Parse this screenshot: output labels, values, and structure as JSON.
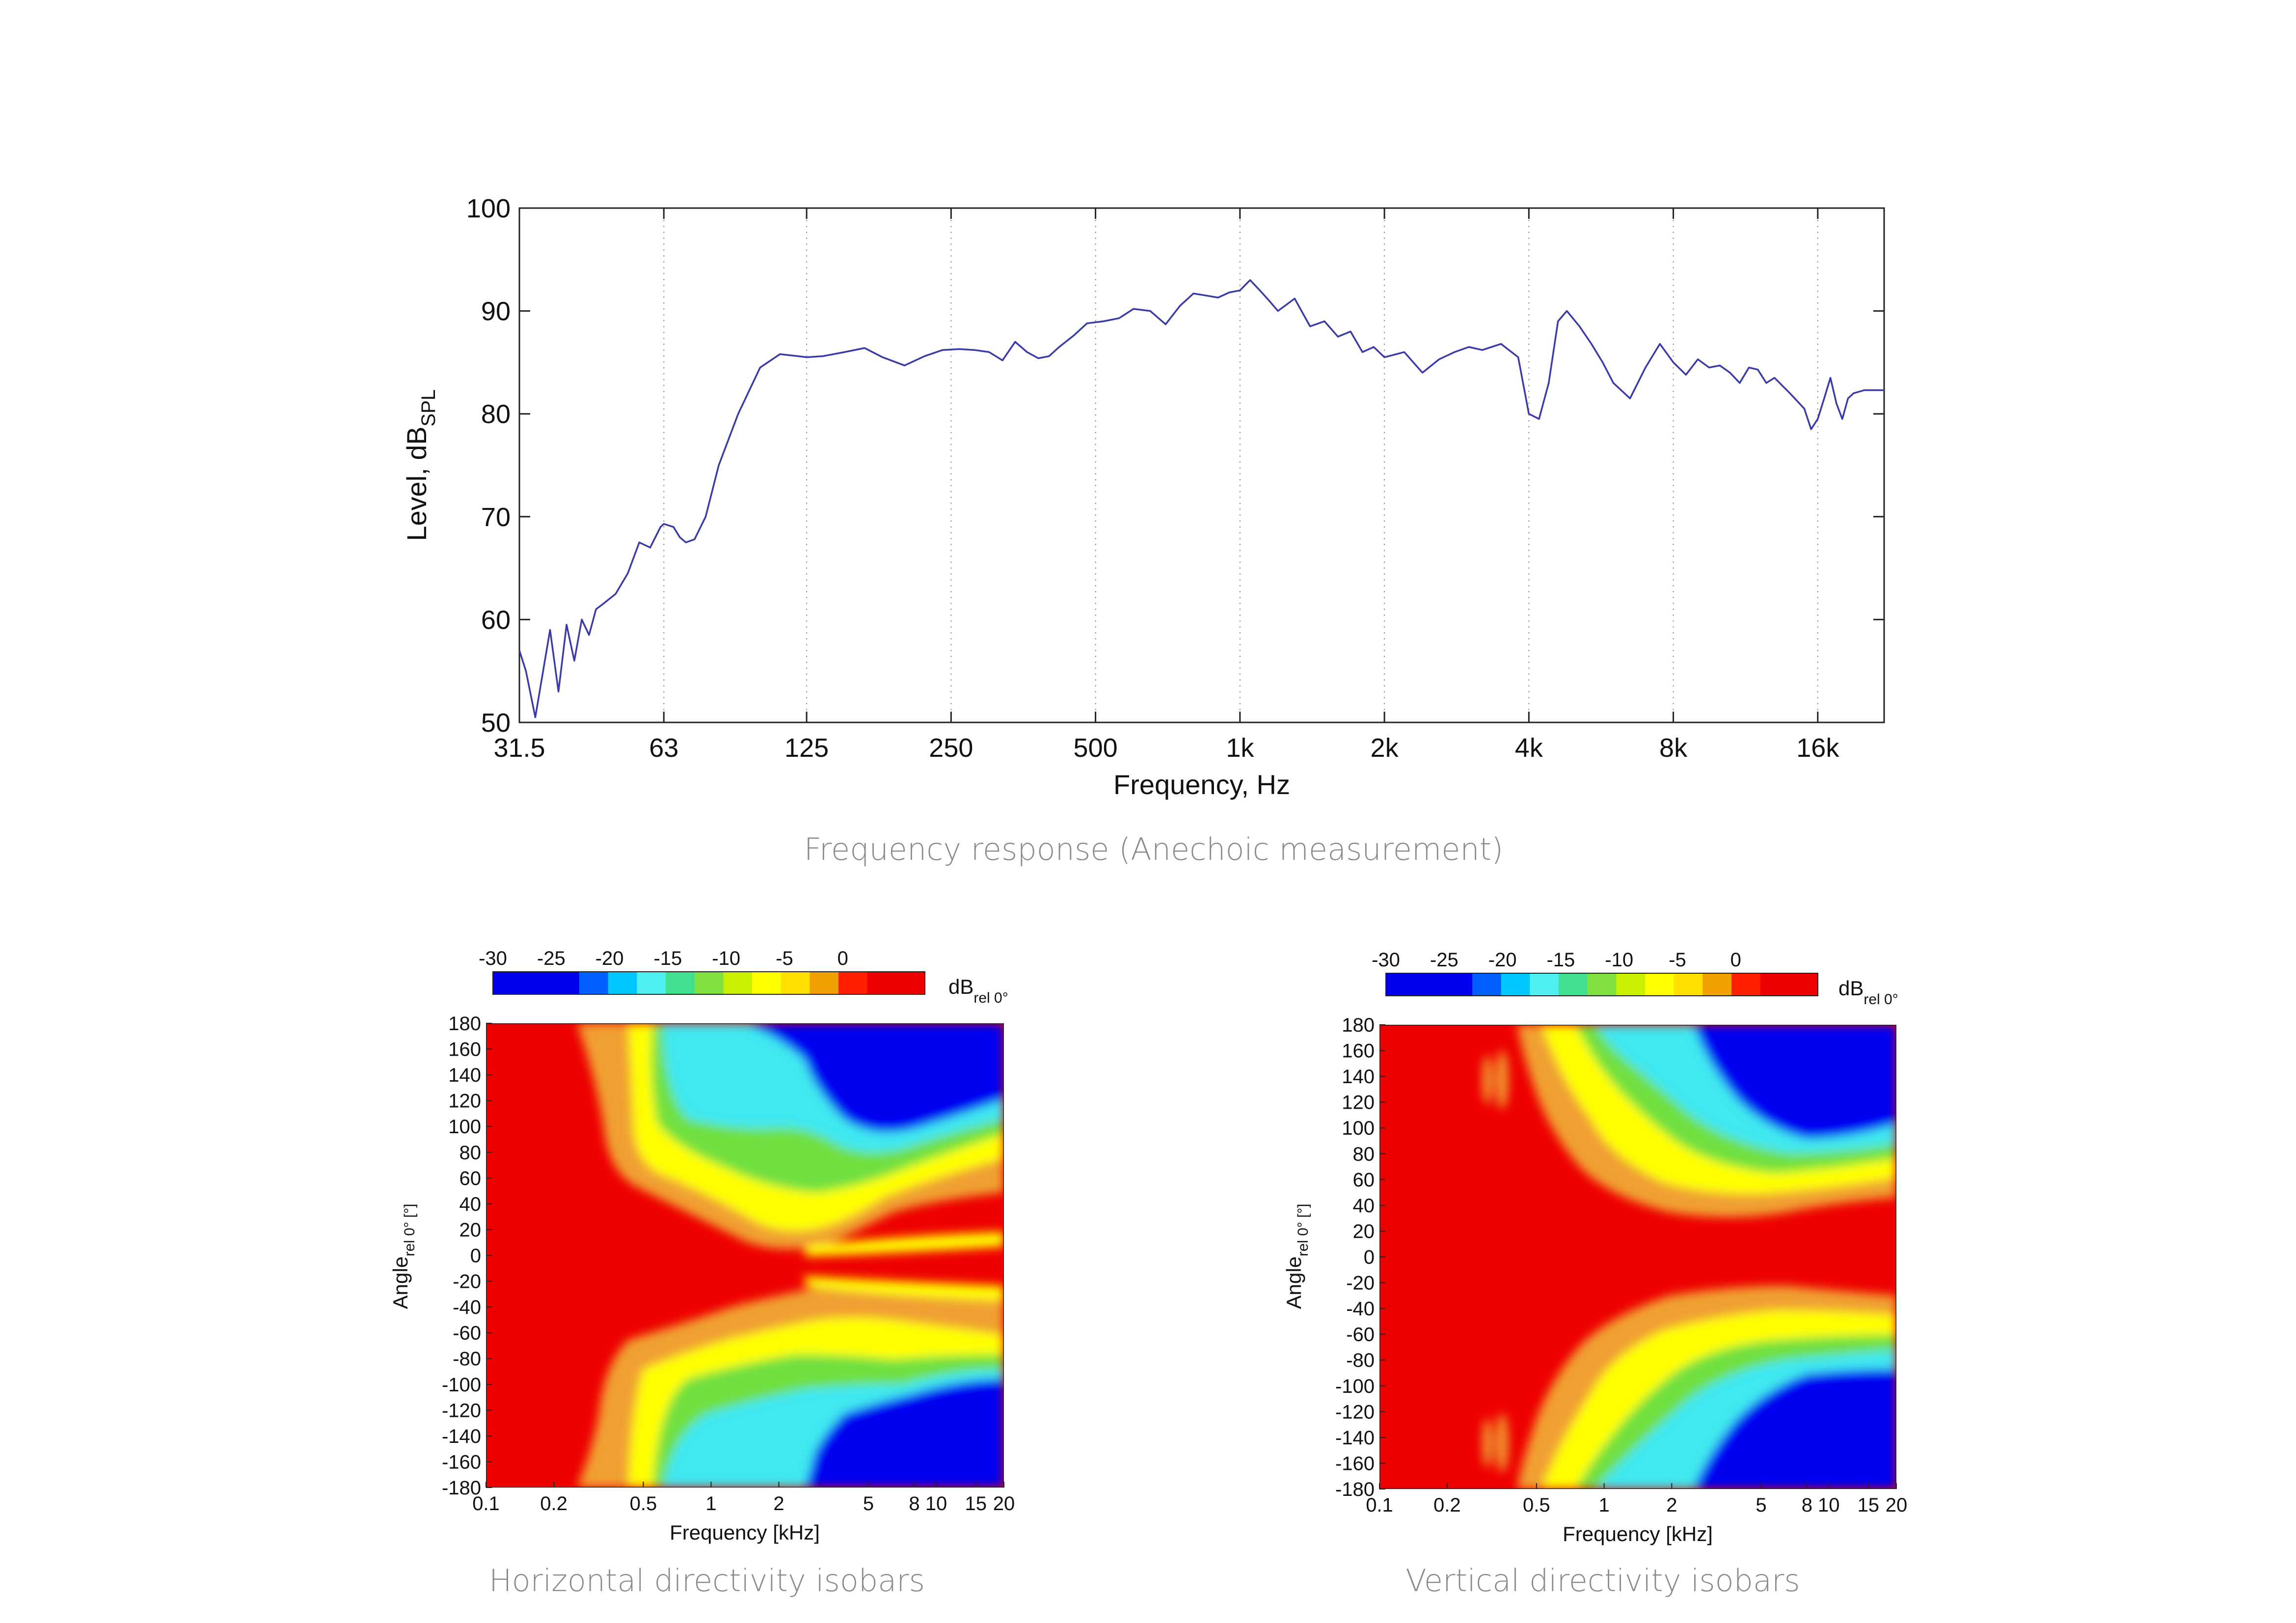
{
  "chart_data": [
    {
      "type": "line",
      "title": "Frequency response (Anechoic measurement)",
      "xlabel": "Frequency, Hz",
      "ylabel_main": "Level, dB",
      "ylabel_sub": "SPL",
      "xscale": "log",
      "xlim": [
        31.5,
        22000
      ],
      "ylim": [
        50,
        100
      ],
      "x_ticks": [
        31.5,
        63,
        125,
        250,
        500,
        1000,
        2000,
        4000,
        8000,
        16000
      ],
      "x_tick_labels": [
        "31.5",
        "63",
        "125",
        "250",
        "500",
        "1k",
        "2k",
        "4k",
        "8k",
        "16k"
      ],
      "y_ticks": [
        50,
        60,
        70,
        80,
        90,
        100
      ],
      "y_tick_labels": [
        "50",
        "60",
        "70",
        "80",
        "90",
        "100"
      ],
      "grid": "vertical-dotted",
      "line_color": "#3a3aa8",
      "series": [
        {
          "name": "Frequency response",
          "x": [
            31.5,
            32.5,
            34,
            36.5,
            38,
            39.5,
            41,
            42.5,
            44,
            45.5,
            47,
            50,
            53,
            56,
            59,
            62,
            63,
            66,
            68,
            70,
            73,
            77,
            82,
            90,
            100,
            110,
            120,
            125,
            135,
            150,
            165,
            180,
            200,
            220,
            240,
            260,
            280,
            300,
            320,
            340,
            360,
            380,
            400,
            420,
            450,
            480,
            520,
            560,
            600,
            650,
            700,
            750,
            800,
            850,
            900,
            950,
            1000,
            1050,
            1100,
            1150,
            1200,
            1300,
            1400,
            1500,
            1600,
            1700,
            1800,
            1900,
            2000,
            2200,
            2400,
            2600,
            2800,
            3000,
            3200,
            3500,
            3800,
            4000,
            4200,
            4400,
            4600,
            4800,
            5100,
            5400,
            5700,
            6000,
            6500,
            7000,
            7500,
            8000,
            8500,
            9000,
            9500,
            10000,
            10500,
            11000,
            11500,
            12000,
            12500,
            13000,
            14000,
            15000,
            15500,
            16000,
            16500,
            17000,
            17500,
            18000,
            18500,
            19000,
            20000,
            21000,
            22000
          ],
          "y": [
            57,
            55,
            50.5,
            59,
            53,
            59.5,
            56,
            60,
            58.5,
            61,
            61.5,
            62.5,
            64.5,
            67.5,
            67,
            69,
            69.3,
            69,
            68,
            67.5,
            67.8,
            70,
            75,
            80,
            84.5,
            85.8,
            85.6,
            85.5,
            85.6,
            86,
            86.4,
            85.5,
            84.7,
            85.6,
            86.2,
            86.3,
            86.2,
            86,
            85.2,
            87,
            86,
            85.4,
            85.6,
            86.5,
            87.6,
            88.8,
            89,
            89.3,
            90.2,
            90,
            88.7,
            90.5,
            91.7,
            91.5,
            91.3,
            91.8,
            92,
            93,
            92,
            91,
            90,
            91.2,
            88.5,
            89,
            87.5,
            88,
            86,
            86.5,
            85.5,
            86,
            84,
            85.3,
            86,
            86.5,
            86.2,
            86.8,
            85.5,
            80,
            79.5,
            83,
            89,
            90,
            88.5,
            86.8,
            85,
            83,
            81.5,
            84.5,
            86.8,
            85,
            83.8,
            85.3,
            84.5,
            84.7,
            84,
            83,
            84.5,
            84.3,
            83,
            83.5,
            82,
            80.5,
            78.5,
            79.5,
            81.5,
            83.5,
            81,
            79.5,
            81.5,
            82,
            82.3,
            82.3,
            82.3
          ]
        }
      ]
    },
    {
      "type": "heatmap",
      "title": "Horizontal directivity isobars",
      "xlabel": "Frequency [kHz]",
      "ylabel_main": "Angle",
      "ylabel_sub": "rel 0° [°]",
      "x_tick_labels": [
        "0.1",
        "0.2",
        "0.5",
        "1",
        "2",
        "5",
        "8",
        "10",
        "15",
        "20"
      ],
      "y_tick_labels": [
        "180",
        "160",
        "140",
        "120",
        "100",
        "80",
        "60",
        "40",
        "20",
        "0",
        "-20",
        "-40",
        "-60",
        "-80",
        "-100",
        "-120",
        "-140",
        "-160",
        "-180"
      ],
      "colorbar_label_main": "dB",
      "colorbar_label_sub": "rel 0°",
      "colorbar_tick_labels": [
        "-30",
        "-25",
        "-20",
        "-15",
        "-10",
        "-5",
        "0"
      ]
    },
    {
      "type": "heatmap",
      "title": "Vertical directivity isobars",
      "xlabel": "Frequency [kHz]",
      "ylabel_main": "Angle",
      "ylabel_sub": "rel 0° [°]",
      "x_tick_labels": [
        "0.1",
        "0.2",
        "0.5",
        "1",
        "2",
        "5",
        "8",
        "10",
        "15",
        "20"
      ],
      "y_tick_labels": [
        "180",
        "160",
        "140",
        "120",
        "100",
        "80",
        "60",
        "40",
        "20",
        "0",
        "-20",
        "-40",
        "-60",
        "-80",
        "-100",
        "-120",
        "-140",
        "-160",
        "-180"
      ],
      "colorbar_label_main": "dB",
      "colorbar_label_sub": "rel 0°",
      "colorbar_tick_labels": [
        "-30",
        "-25",
        "-20",
        "-15",
        "-10",
        "-5",
        "0"
      ]
    }
  ],
  "colorbar_colors": [
    "#0000ee",
    "#0000ee",
    "#0000ee",
    "#0060ff",
    "#00c8ff",
    "#50f0f0",
    "#40e090",
    "#80e040",
    "#c8f000",
    "#ffff00",
    "#ffe000",
    "#f0a000",
    "#ff2000",
    "#ee0000",
    "#ee0000"
  ],
  "isobar_colors": {
    "red": "#ee0000",
    "orange": "#f0a030",
    "yellow": "#ffff00",
    "green": "#70e040",
    "cyan": "#40e8f0",
    "blue": "#0000f0"
  }
}
